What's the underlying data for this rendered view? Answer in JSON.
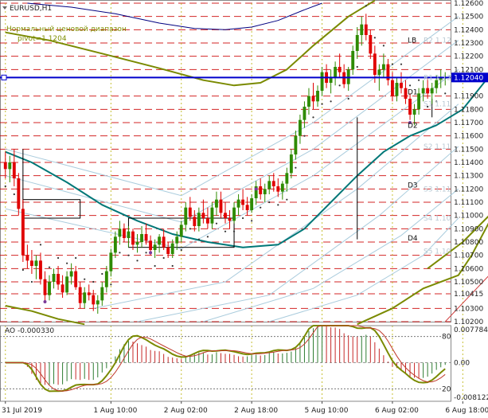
{
  "chart_data": {
    "type": "candlestick",
    "symbol_label": "EURUSD,H1",
    "indicator_name": "Нормальный ценовой диапазон",
    "pivot_label": "pivot=1.1204",
    "pivot": 1.1204,
    "current_price": 1.1204,
    "current_price_label": "1.12040",
    "ylim": [
      1.102,
      1.126
    ],
    "yticks": [
      {
        "value": 1.126,
        "label": "1.12600"
      },
      {
        "value": 1.125,
        "label": "1.12500"
      },
      {
        "value": 1.124,
        "label": "1.12400"
      },
      {
        "value": 1.123,
        "label": "1.12300"
      },
      {
        "value": 1.122,
        "label": "1.12200"
      },
      {
        "value": 1.121,
        "label": "1.12100"
      },
      {
        "value": 1.119,
        "label": "1.11900"
      },
      {
        "value": 1.118,
        "label": "1.11800"
      },
      {
        "value": 1.117,
        "label": "1.11700"
      },
      {
        "value": 1.116,
        "label": "1.11600"
      },
      {
        "value": 1.115,
        "label": "1.11500"
      },
      {
        "value": 1.114,
        "label": "1.11400"
      },
      {
        "value": 1.113,
        "label": "1.11300"
      },
      {
        "value": 1.112,
        "label": "1.11200"
      },
      {
        "value": 1.111,
        "label": "1.11100"
      },
      {
        "value": 1.11,
        "label": "1.11000"
      },
      {
        "value": 1.109,
        "label": "1.10900"
      },
      {
        "value": 1.108,
        "label": "1.10800"
      },
      {
        "value": 1.107,
        "label": "1.10700"
      },
      {
        "value": 1.106,
        "label": "1.10600"
      },
      {
        "value": 1.105,
        "label": "1.10500"
      },
      {
        "value": 1.1041,
        "label": "1.10415"
      },
      {
        "value": 1.103,
        "label": "1.10300"
      },
      {
        "value": 1.102,
        "label": "1.10200"
      }
    ],
    "xticks": [
      {
        "bar": 0,
        "label": "31 Jul 2019"
      },
      {
        "bar": 24,
        "label": "1 Aug 10:00"
      },
      {
        "bar": 40,
        "label": "2 Aug 02:00"
      },
      {
        "bar": 56,
        "label": "2 Aug 18:00"
      },
      {
        "bar": 72,
        "label": "5 Aug 10:00"
      },
      {
        "bar": 88,
        "label": "6 Aug 02:00"
      },
      {
        "bar": 104,
        "label": "6 Aug 18:00"
      }
    ],
    "right_labels": [
      {
        "text": "LB",
        "value": 1.1232
      },
      {
        "text": "D1",
        "value": 1.1193
      },
      {
        "text": "D2",
        "value": 1.1168
      },
      {
        "text": "D3",
        "value": 1.1123
      },
      {
        "text": "D4",
        "value": 1.1083
      }
    ],
    "faint_labels": [
      {
        "text": "R2 1.12",
        "value": 1.1232
      },
      {
        "text": "R1 1.12",
        "value": 1.1204
      },
      {
        "text": "S1 1.11",
        "value": 1.1184
      },
      {
        "text": "S2 1.11",
        "value": 1.1152
      },
      {
        "text": "S3 1.11",
        "value": 1.112
      },
      {
        "text": "S4 1.10",
        "value": 1.1098
      },
      {
        "text": "S5 1.10",
        "value": 1.1073
      }
    ],
    "candles": [
      [
        1.114,
        1.1148,
        1.1128,
        1.1135
      ],
      [
        1.1135,
        1.1145,
        1.1125,
        1.114
      ],
      [
        1.114,
        1.115,
        1.1122,
        1.1128
      ],
      [
        1.1128,
        1.1132,
        1.11,
        1.1105
      ],
      [
        1.1105,
        1.1112,
        1.1065,
        1.107
      ],
      [
        1.107,
        1.1078,
        1.106,
        1.1066
      ],
      [
        1.1066,
        1.1074,
        1.1056,
        1.1062
      ],
      [
        1.1062,
        1.107,
        1.1052,
        1.1066
      ],
      [
        1.1066,
        1.1072,
        1.1048,
        1.1052
      ],
      [
        1.1052,
        1.1058,
        1.1035,
        1.104
      ],
      [
        1.104,
        1.1055,
        1.1036,
        1.105
      ],
      [
        1.105,
        1.106,
        1.1045,
        1.1056
      ],
      [
        1.1056,
        1.1062,
        1.1044,
        1.1048
      ],
      [
        1.1048,
        1.1055,
        1.1038,
        1.1042
      ],
      [
        1.1042,
        1.1058,
        1.104,
        1.1054
      ],
      [
        1.1054,
        1.1064,
        1.1048,
        1.1058
      ],
      [
        1.1058,
        1.1062,
        1.1044,
        1.1046
      ],
      [
        1.1046,
        1.105,
        1.103,
        1.1034
      ],
      [
        1.1034,
        1.1046,
        1.103,
        1.1042
      ],
      [
        1.1042,
        1.1048,
        1.1036,
        1.104
      ],
      [
        1.104,
        1.1044,
        1.1028,
        1.1033
      ],
      [
        1.1033,
        1.104,
        1.1026,
        1.1036
      ],
      [
        1.1036,
        1.105,
        1.1032,
        1.1046
      ],
      [
        1.1046,
        1.1062,
        1.1042,
        1.1058
      ],
      [
        1.1058,
        1.1075,
        1.1054,
        1.1072
      ],
      [
        1.1072,
        1.1088,
        1.1068,
        1.1084
      ],
      [
        1.1084,
        1.1096,
        1.1078,
        1.109
      ],
      [
        1.109,
        1.1094,
        1.108,
        1.1083
      ],
      [
        1.1083,
        1.1092,
        1.1076,
        1.1088
      ],
      [
        1.1088,
        1.109,
        1.1074,
        1.1078
      ],
      [
        1.1078,
        1.1086,
        1.1072,
        1.108
      ],
      [
        1.108,
        1.1092,
        1.1076,
        1.1086
      ],
      [
        1.1086,
        1.1094,
        1.1078,
        1.1081
      ],
      [
        1.1081,
        1.1085,
        1.107,
        1.1074
      ],
      [
        1.1074,
        1.1082,
        1.1068,
        1.1078
      ],
      [
        1.1078,
        1.1086,
        1.1072,
        1.1084
      ],
      [
        1.1084,
        1.109,
        1.1074,
        1.1076
      ],
      [
        1.1076,
        1.108,
        1.1068,
        1.1071
      ],
      [
        1.1071,
        1.1082,
        1.1068,
        1.1079
      ],
      [
        1.1079,
        1.1088,
        1.1074,
        1.1084
      ],
      [
        1.1084,
        1.1096,
        1.108,
        1.1093
      ],
      [
        1.1093,
        1.111,
        1.1088,
        1.1106
      ],
      [
        1.1106,
        1.1114,
        1.1096,
        1.1099
      ],
      [
        1.1099,
        1.1104,
        1.1088,
        1.1092
      ],
      [
        1.1092,
        1.1106,
        1.1088,
        1.1102
      ],
      [
        1.1102,
        1.1112,
        1.1094,
        1.1098
      ],
      [
        1.1098,
        1.1106,
        1.109,
        1.1094
      ],
      [
        1.1094,
        1.111,
        1.109,
        1.1106
      ],
      [
        1.1106,
        1.1118,
        1.11,
        1.1112
      ],
      [
        1.1112,
        1.1118,
        1.1098,
        1.1102
      ],
      [
        1.1102,
        1.111,
        1.1094,
        1.1098
      ],
      [
        1.1098,
        1.1104,
        1.109,
        1.1096
      ],
      [
        1.1096,
        1.111,
        1.1094,
        1.1106
      ],
      [
        1.1106,
        1.1116,
        1.11,
        1.1112
      ],
      [
        1.1112,
        1.112,
        1.1104,
        1.1108
      ],
      [
        1.1108,
        1.1114,
        1.11,
        1.1104
      ],
      [
        1.1104,
        1.1116,
        1.1102,
        1.1113
      ],
      [
        1.1113,
        1.1126,
        1.1108,
        1.1122
      ],
      [
        1.1122,
        1.1128,
        1.1112,
        1.1116
      ],
      [
        1.1116,
        1.1124,
        1.111,
        1.112
      ],
      [
        1.112,
        1.113,
        1.1116,
        1.1126
      ],
      [
        1.1126,
        1.1132,
        1.1118,
        1.1122
      ],
      [
        1.1122,
        1.1128,
        1.1114,
        1.1118
      ],
      [
        1.1118,
        1.1126,
        1.1112,
        1.1124
      ],
      [
        1.1124,
        1.1136,
        1.1118,
        1.1132
      ],
      [
        1.1132,
        1.115,
        1.1128,
        1.1146
      ],
      [
        1.1146,
        1.1164,
        1.1142,
        1.116
      ],
      [
        1.116,
        1.1176,
        1.1154,
        1.1172
      ],
      [
        1.1172,
        1.1186,
        1.1166,
        1.1182
      ],
      [
        1.1182,
        1.1196,
        1.1176,
        1.119
      ],
      [
        1.119,
        1.12,
        1.118,
        1.1186
      ],
      [
        1.1186,
        1.1198,
        1.1182,
        1.1194
      ],
      [
        1.1194,
        1.1212,
        1.119,
        1.1208
      ],
      [
        1.1208,
        1.1214,
        1.1196,
        1.12
      ],
      [
        1.12,
        1.121,
        1.1192,
        1.1204
      ],
      [
        1.1204,
        1.1216,
        1.1198,
        1.1212
      ],
      [
        1.1212,
        1.1222,
        1.1204,
        1.1208
      ],
      [
        1.1208,
        1.1214,
        1.1196,
        1.1199
      ],
      [
        1.1199,
        1.1212,
        1.1194,
        1.121
      ],
      [
        1.121,
        1.1228,
        1.1206,
        1.1224
      ],
      [
        1.1224,
        1.1242,
        1.1218,
        1.1236
      ],
      [
        1.1236,
        1.125,
        1.1228,
        1.1244
      ],
      [
        1.1244,
        1.1252,
        1.1232,
        1.1236
      ],
      [
        1.1236,
        1.124,
        1.1218,
        1.1222
      ],
      [
        1.1222,
        1.1228,
        1.12,
        1.1206
      ],
      [
        1.1206,
        1.1214,
        1.1194,
        1.121
      ],
      [
        1.121,
        1.1222,
        1.1204,
        1.1214
      ],
      [
        1.1214,
        1.1218,
        1.1198,
        1.1202
      ],
      [
        1.1202,
        1.1208,
        1.1186,
        1.119
      ],
      [
        1.119,
        1.1204,
        1.1186,
        1.12
      ],
      [
        1.12,
        1.1208,
        1.1192,
        1.1196
      ],
      [
        1.1196,
        1.1202,
        1.1184,
        1.1188
      ],
      [
        1.1188,
        1.1192,
        1.1172,
        1.1176
      ],
      [
        1.1176,
        1.1184,
        1.1168,
        1.118
      ],
      [
        1.118,
        1.1196,
        1.1176,
        1.1192
      ],
      [
        1.1192,
        1.1202,
        1.1186,
        1.1196
      ],
      [
        1.1196,
        1.1204,
        1.1188,
        1.1192
      ],
      [
        1.1192,
        1.12,
        1.1184,
        1.1196
      ],
      [
        1.1196,
        1.1206,
        1.1192,
        1.1202
      ],
      [
        1.1202,
        1.121,
        1.1196,
        1.1204
      ],
      [
        1.1204,
        1.1208,
        1.1198,
        1.1204
      ]
    ],
    "ao": {
      "name": "AO",
      "value_label": "-0.000330",
      "ylim": [
        -0.008122,
        0.007784
      ],
      "yticks": [
        {
          "value": 0.007784,
          "label": "0.007784"
        },
        {
          "value": 0.0,
          "label": "0.00"
        },
        {
          "value": -0.008122,
          "label": "-0.008122"
        }
      ],
      "levels": [
        {
          "value": 0.0055,
          "label": "80"
        },
        {
          "value": -0.0055,
          "label": "20"
        }
      ]
    },
    "colors": {
      "bull": "#2e8b00",
      "bear": "#e00000",
      "pivot_line": "#0000cc",
      "grid_red": "#cc0000",
      "ma_teal": "#007777",
      "envelope": "#7a8a00",
      "navy": "#000080",
      "faint": "#aaccdd",
      "ao_up": "#2e7d32",
      "ao_down": "#c62828"
    }
  }
}
